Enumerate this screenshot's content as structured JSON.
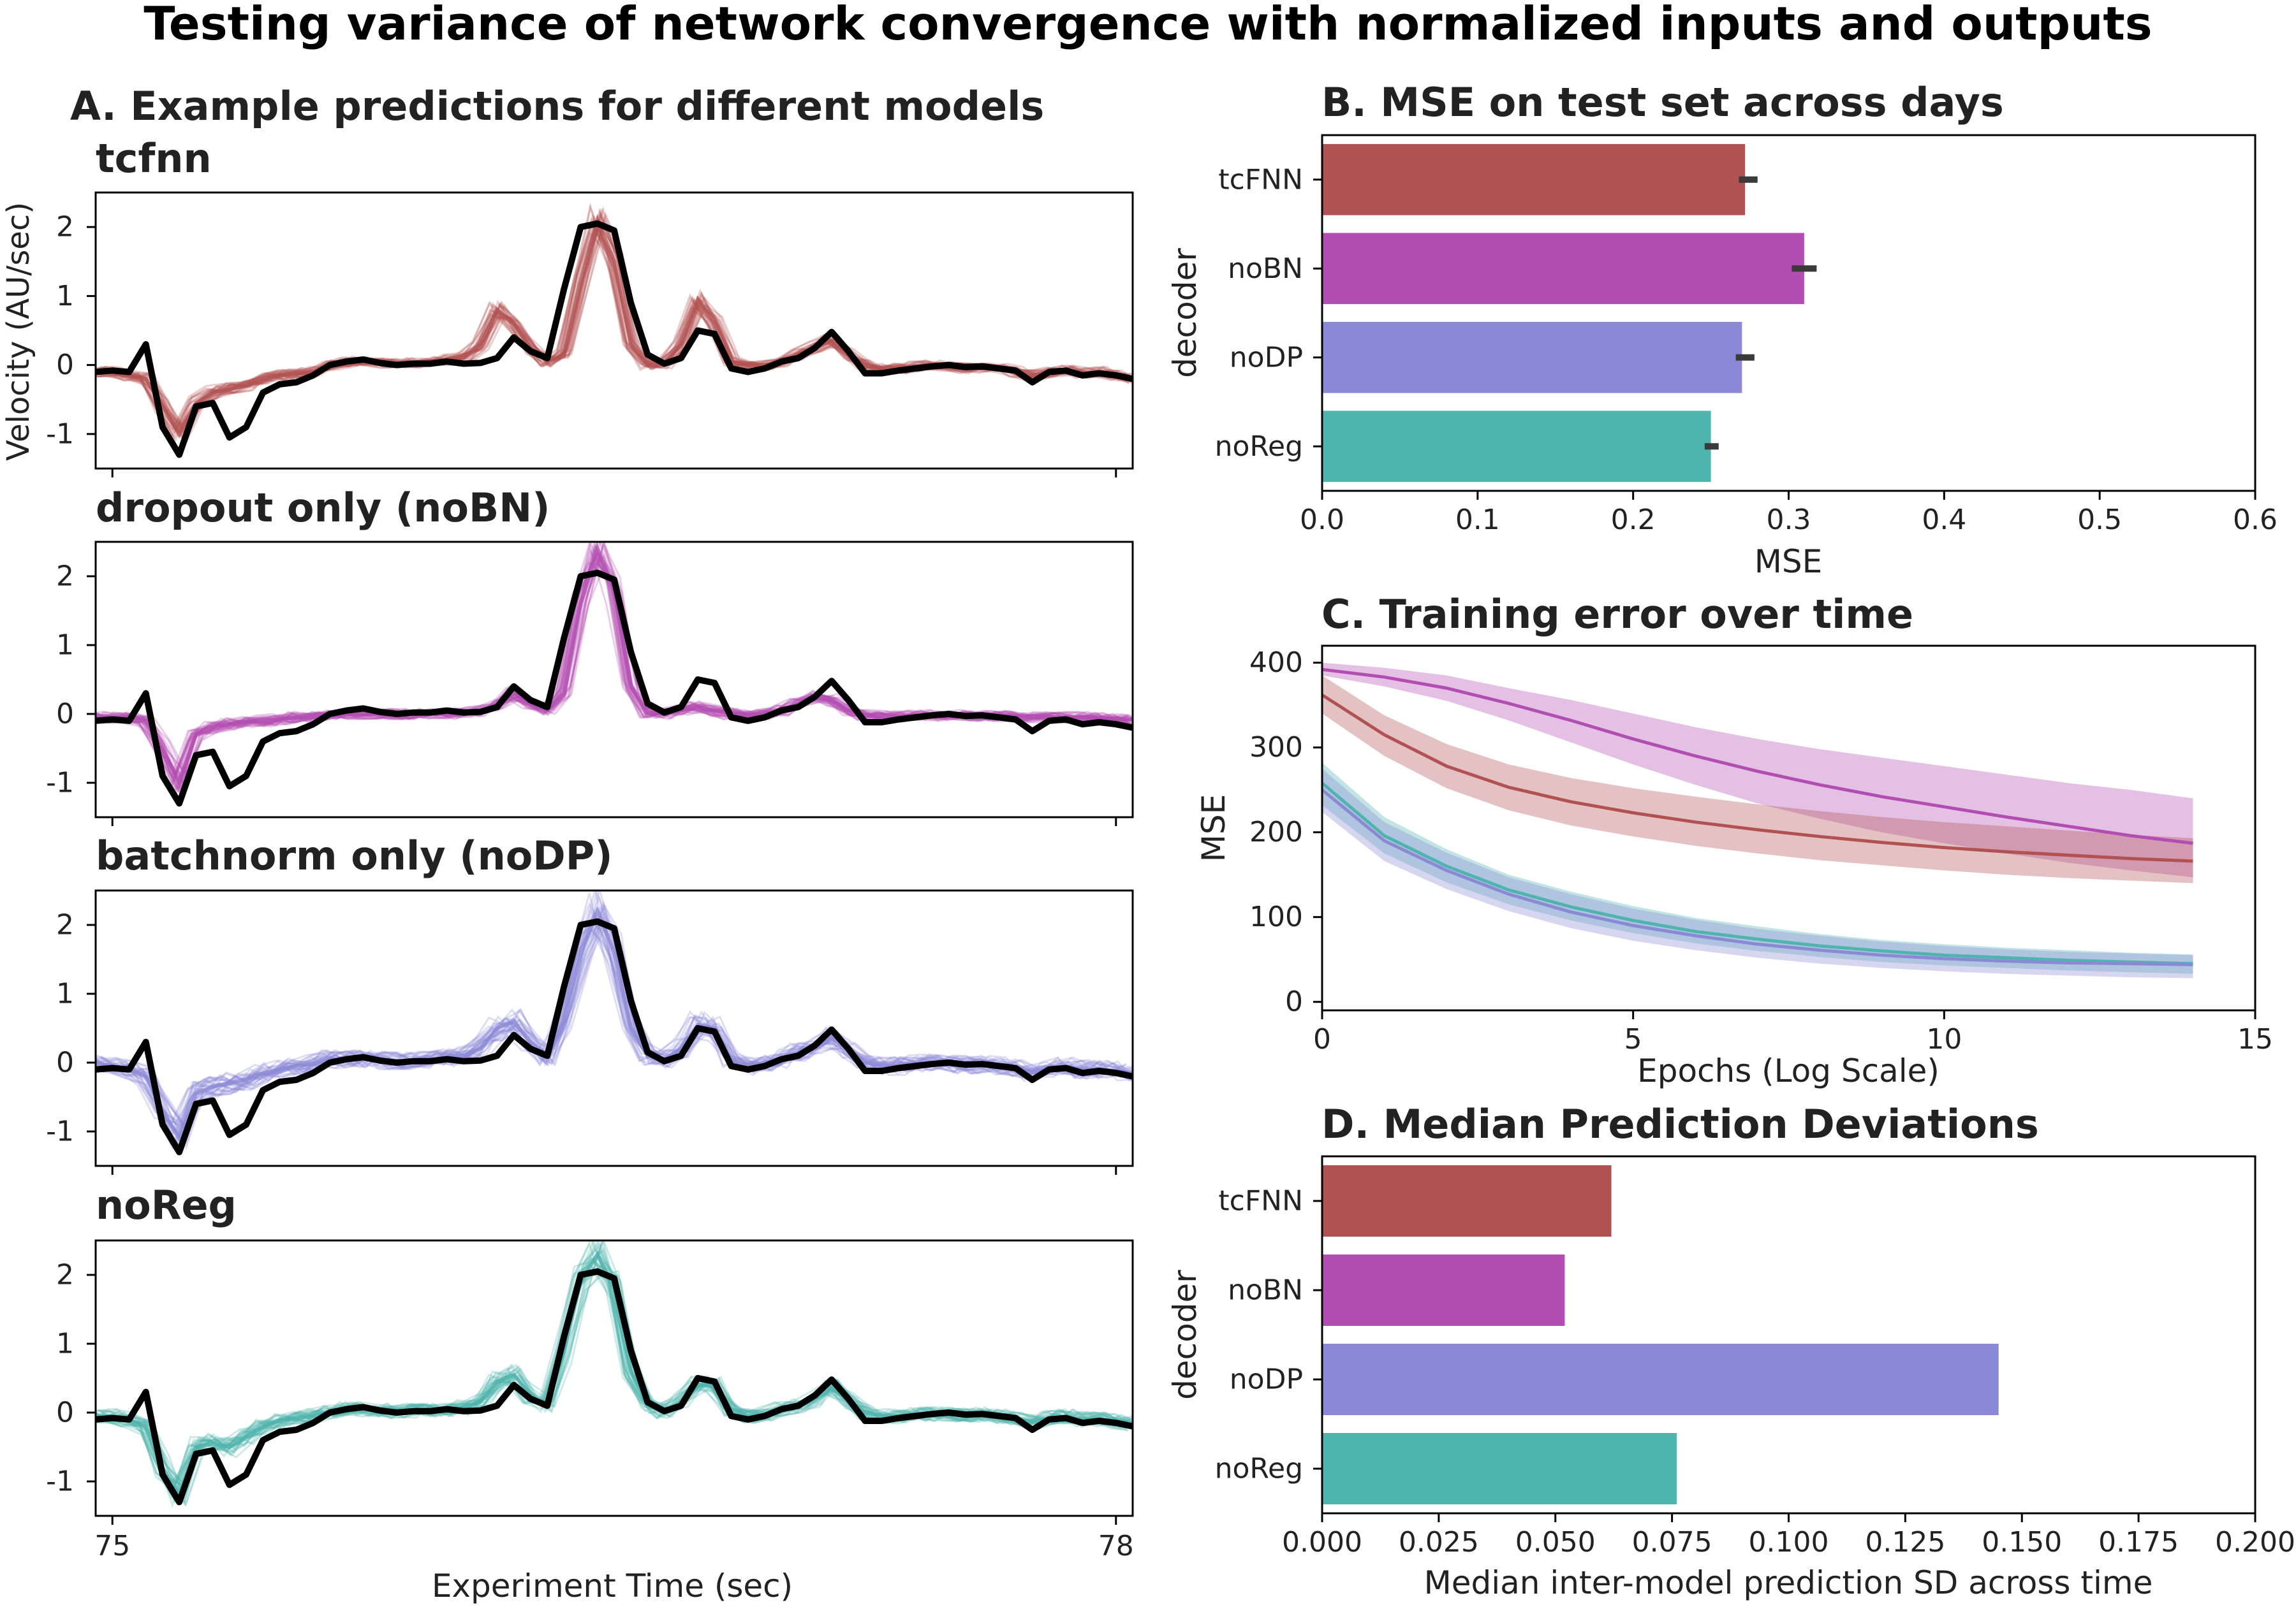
{
  "figure": {
    "title": "Testing variance of network convergence with normalized inputs and outputs"
  },
  "colors": {
    "tcfnn": "#b25152",
    "noBN": "#b24db1",
    "noDP": "#8b89d6",
    "noReg": "#4fb3ae",
    "truth": "#000000",
    "errorbar": "#3a3a3a"
  },
  "panelA": {
    "heading": "A. Example predictions for different models",
    "ylabel": "Velocity (AU/sec)",
    "xlabel": "Experiment Time (sec)",
    "xticks": [
      "75",
      "78"
    ],
    "yticks": [
      "2",
      "1",
      "0",
      "-1"
    ],
    "subplots": [
      {
        "title": "tcfnn",
        "color": "tcfnn"
      },
      {
        "title": "dropout only (noBN)",
        "color": "noBN"
      },
      {
        "title": "batchnorm only (noDP)",
        "color": "noDP"
      },
      {
        "title": "noReg",
        "color": "noReg"
      }
    ]
  },
  "panelB": {
    "heading": "B. MSE on test set across days",
    "xlabel": "MSE",
    "ylabel": "decoder"
  },
  "panelC": {
    "heading": "C. Training error over time",
    "xlabel": "Epochs (Log Scale)",
    "ylabel": "MSE"
  },
  "panelD": {
    "heading": "D. Median Prediction Deviations",
    "xlabel": "Median inter-model prediction SD across time",
    "ylabel": "decoder"
  },
  "chart_data": [
    {
      "id": "A",
      "type": "line",
      "title": "A. Example predictions for different models",
      "xlabel": "Experiment Time (sec)",
      "ylabel": "Velocity (AU/sec)",
      "xlim": [
        74.95,
        78.05
      ],
      "ylim": [
        -1.5,
        2.5
      ],
      "grid": false,
      "x": [
        74.95,
        75.0,
        75.05,
        75.1,
        75.15,
        75.2,
        75.25,
        75.3,
        75.35,
        75.4,
        75.45,
        75.5,
        75.55,
        75.6,
        75.65,
        75.7,
        75.75,
        75.8,
        75.85,
        75.9,
        75.95,
        76.0,
        76.05,
        76.1,
        76.15,
        76.2,
        76.25,
        76.3,
        76.35,
        76.4,
        76.45,
        76.5,
        76.55,
        76.6,
        76.65,
        76.7,
        76.75,
        76.8,
        76.85,
        76.9,
        76.95,
        77.0,
        77.05,
        77.1,
        77.15,
        77.2,
        77.25,
        77.3,
        77.35,
        77.4,
        77.45,
        77.5,
        77.55,
        77.6,
        77.65,
        77.7,
        77.75,
        77.8,
        77.85,
        77.9,
        77.95,
        78.0,
        78.05
      ],
      "truth": [
        -0.1,
        -0.08,
        -0.1,
        0.3,
        -0.9,
        -1.3,
        -0.6,
        -0.55,
        -1.05,
        -0.9,
        -0.4,
        -0.28,
        -0.25,
        -0.15,
        0.0,
        0.05,
        0.08,
        0.03,
        0.0,
        0.02,
        0.02,
        0.05,
        0.02,
        0.03,
        0.1,
        0.4,
        0.2,
        0.1,
        1.1,
        2.0,
        2.05,
        1.95,
        0.9,
        0.15,
        0.02,
        0.1,
        0.5,
        0.45,
        -0.05,
        -0.1,
        -0.05,
        0.05,
        0.1,
        0.25,
        0.48,
        0.2,
        -0.12,
        -0.12,
        -0.08,
        -0.05,
        -0.02,
        0.0,
        -0.03,
        -0.02,
        -0.05,
        -0.08,
        -0.25,
        -0.1,
        -0.08,
        -0.15,
        -0.12,
        -0.15,
        -0.2
      ],
      "series": [
        {
          "name": "tcfnn",
          "values": [
            -0.1,
            -0.1,
            -0.15,
            -0.2,
            -0.6,
            -1.0,
            -0.55,
            -0.4,
            -0.35,
            -0.3,
            -0.2,
            -0.15,
            -0.12,
            -0.1,
            0.0,
            0.05,
            0.05,
            0.03,
            0.02,
            0.03,
            0.05,
            0.08,
            0.1,
            0.3,
            0.8,
            0.6,
            0.25,
            0.05,
            0.15,
            1.2,
            2.1,
            1.5,
            0.3,
            0.0,
            0.02,
            0.3,
            0.95,
            0.6,
            0.05,
            0.0,
            0.0,
            0.05,
            0.15,
            0.25,
            0.35,
            0.15,
            0.0,
            -0.05,
            -0.05,
            -0.02,
            0.0,
            -0.02,
            -0.05,
            -0.05,
            -0.05,
            -0.1,
            -0.15,
            -0.1,
            -0.08,
            -0.12,
            -0.1,
            -0.15,
            -0.2
          ],
          "spread": 0.18
        },
        {
          "name": "noBN",
          "values": [
            -0.05,
            -0.05,
            -0.05,
            -0.1,
            -0.5,
            -1.0,
            -0.3,
            -0.2,
            -0.15,
            -0.12,
            -0.1,
            -0.08,
            -0.05,
            -0.05,
            -0.02,
            0.0,
            0.0,
            0.0,
            0.0,
            0.0,
            0.0,
            0.0,
            0.02,
            0.05,
            0.12,
            0.3,
            0.15,
            0.05,
            0.3,
            1.6,
            2.4,
            1.8,
            0.4,
            0.02,
            0.0,
            0.05,
            0.1,
            0.05,
            0.0,
            -0.02,
            0.0,
            0.05,
            0.15,
            0.25,
            0.2,
            0.05,
            -0.02,
            -0.03,
            -0.03,
            -0.02,
            -0.02,
            -0.02,
            -0.02,
            -0.03,
            -0.03,
            -0.03,
            -0.05,
            -0.05,
            -0.05,
            -0.05,
            -0.06,
            -0.07,
            -0.08
          ],
          "spread": 0.2
        },
        {
          "name": "noDP",
          "values": [
            0.0,
            -0.05,
            -0.1,
            -0.2,
            -0.7,
            -1.1,
            -0.45,
            -0.35,
            -0.3,
            -0.25,
            -0.15,
            -0.1,
            -0.05,
            -0.02,
            0.05,
            0.05,
            0.05,
            0.03,
            0.02,
            0.03,
            0.05,
            0.08,
            0.1,
            0.2,
            0.5,
            0.6,
            0.3,
            0.1,
            0.6,
            1.6,
            2.2,
            1.6,
            0.5,
            0.1,
            0.05,
            0.2,
            0.55,
            0.5,
            0.05,
            -0.05,
            0.0,
            0.05,
            0.15,
            0.2,
            0.35,
            0.2,
            0.0,
            -0.05,
            -0.05,
            -0.02,
            0.0,
            -0.02,
            -0.03,
            -0.03,
            -0.05,
            -0.08,
            -0.15,
            -0.08,
            -0.05,
            -0.1,
            -0.1,
            -0.12,
            -0.15
          ],
          "spread": 0.32
        },
        {
          "name": "noReg",
          "values": [
            -0.05,
            -0.05,
            -0.1,
            -0.2,
            -0.8,
            -1.2,
            -0.5,
            -0.45,
            -0.5,
            -0.35,
            -0.2,
            -0.12,
            -0.08,
            -0.05,
            0.02,
            0.05,
            0.05,
            0.03,
            0.02,
            0.03,
            0.04,
            0.05,
            0.08,
            0.15,
            0.45,
            0.55,
            0.25,
            0.1,
            0.9,
            1.9,
            2.3,
            1.8,
            0.6,
            0.1,
            0.02,
            0.15,
            0.4,
            0.4,
            0.05,
            -0.05,
            -0.02,
            0.05,
            0.1,
            0.2,
            0.35,
            0.18,
            0.0,
            -0.05,
            -0.05,
            -0.03,
            -0.02,
            -0.03,
            -0.03,
            -0.03,
            -0.05,
            -0.08,
            -0.15,
            -0.08,
            -0.06,
            -0.1,
            -0.1,
            -0.12,
            -0.15
          ],
          "spread": 0.26
        }
      ]
    },
    {
      "id": "B",
      "type": "bar",
      "orientation": "horizontal",
      "title": "B. MSE on test set across days",
      "xlabel": "MSE",
      "ylabel": "decoder",
      "categories": [
        "tcFNN",
        "noBN",
        "noDP",
        "noReg"
      ],
      "values": [
        0.272,
        0.31,
        0.27,
        0.25
      ],
      "errors": [
        [
          0.268,
          0.28
        ],
        [
          0.302,
          0.318
        ],
        [
          0.266,
          0.278
        ],
        [
          0.246,
          0.255
        ]
      ],
      "colors": [
        "tcfnn",
        "noBN",
        "noDP",
        "noReg"
      ],
      "xlim": [
        0.0,
        0.6
      ],
      "xticks": [
        "0.0",
        "0.1",
        "0.2",
        "0.3",
        "0.4",
        "0.5",
        "0.6"
      ],
      "grid": false
    },
    {
      "id": "C",
      "type": "line",
      "title": "C. Training error over time",
      "xlabel": "Epochs (Log Scale)",
      "ylabel": "MSE",
      "xlim": [
        0,
        15
      ],
      "ylim": [
        -10,
        420
      ],
      "xticks": [
        "0",
        "5",
        "10",
        "15"
      ],
      "yticks": [
        "0",
        "100",
        "200",
        "300",
        "400"
      ],
      "x": [
        0,
        1,
        2,
        3,
        4,
        5,
        6,
        7,
        8,
        9,
        10,
        11,
        12,
        13,
        14
      ],
      "series": [
        {
          "name": "noBN",
          "color": "noBN",
          "values": [
            392,
            383,
            370,
            352,
            332,
            310,
            290,
            272,
            256,
            242,
            230,
            218,
            207,
            196,
            187
          ],
          "band": [
            [
              385,
              400
            ],
            [
              372,
              394
            ],
            [
              355,
              385
            ],
            [
              332,
              370
            ],
            [
              306,
              356
            ],
            [
              280,
              340
            ],
            [
              256,
              324
            ],
            [
              234,
              310
            ],
            [
              216,
              298
            ],
            [
              200,
              288
            ],
            [
              187,
              278
            ],
            [
              175,
              268
            ],
            [
              164,
              258
            ],
            [
              155,
              250
            ],
            [
              147,
              240
            ]
          ]
        },
        {
          "name": "tcfnn",
          "color": "tcfnn",
          "values": [
            362,
            315,
            278,
            253,
            236,
            223,
            212,
            203,
            195,
            188,
            182,
            177,
            173,
            169,
            166
          ],
          "band": [
            [
              340,
              385
            ],
            [
              290,
              338
            ],
            [
              252,
              304
            ],
            [
              226,
              280
            ],
            [
              208,
              264
            ],
            [
              195,
              252
            ],
            [
              184,
              242
            ],
            [
              175,
              233
            ],
            [
              167,
              225
            ],
            [
              161,
              218
            ],
            [
              155,
              212
            ],
            [
              150,
              207
            ],
            [
              146,
              202
            ],
            [
              143,
              197
            ],
            [
              140,
              193
            ]
          ]
        },
        {
          "name": "noReg",
          "color": "noReg",
          "values": [
            258,
            196,
            160,
            132,
            112,
            96,
            83,
            74,
            66,
            60,
            55,
            52,
            49,
            47,
            45
          ],
          "band": [
            [
              232,
              282
            ],
            [
              175,
              218
            ],
            [
              141,
              180
            ],
            [
              115,
              150
            ],
            [
              96,
              130
            ],
            [
              81,
              113
            ],
            [
              69,
              99
            ],
            [
              60,
              89
            ],
            [
              53,
              80
            ],
            [
              47,
              73
            ],
            [
              43,
              68
            ],
            [
              40,
              64
            ],
            [
              37,
              61
            ],
            [
              35,
              58
            ],
            [
              33,
              56
            ]
          ]
        },
        {
          "name": "noDP",
          "color": "noDP",
          "values": [
            250,
            190,
            155,
            127,
            106,
            90,
            78,
            68,
            61,
            55,
            51,
            48,
            46,
            45,
            44
          ],
          "band": [
            [
              224,
              275
            ],
            [
              166,
              212
            ],
            [
              133,
              176
            ],
            [
              107,
              147
            ],
            [
              87,
              127
            ],
            [
              72,
              110
            ],
            [
              61,
              97
            ],
            [
              52,
              86
            ],
            [
              45,
              78
            ],
            [
              40,
              71
            ],
            [
              36,
              66
            ],
            [
              33,
              62
            ],
            [
              31,
              59
            ],
            [
              29,
              57
            ],
            [
              28,
              55
            ]
          ]
        }
      ],
      "grid": false
    },
    {
      "id": "D",
      "type": "bar",
      "orientation": "horizontal",
      "title": "D. Median Prediction Deviations",
      "xlabel": "Median inter-model prediction SD across time",
      "ylabel": "decoder",
      "categories": [
        "tcFNN",
        "noBN",
        "noDP",
        "noReg"
      ],
      "values": [
        0.062,
        0.052,
        0.145,
        0.076
      ],
      "colors": [
        "tcfnn",
        "noBN",
        "noDP",
        "noReg"
      ],
      "xlim": [
        0.0,
        0.2
      ],
      "xticks": [
        "0.000",
        "0.025",
        "0.050",
        "0.075",
        "0.100",
        "0.125",
        "0.150",
        "0.175",
        "0.200"
      ],
      "grid": false
    }
  ]
}
